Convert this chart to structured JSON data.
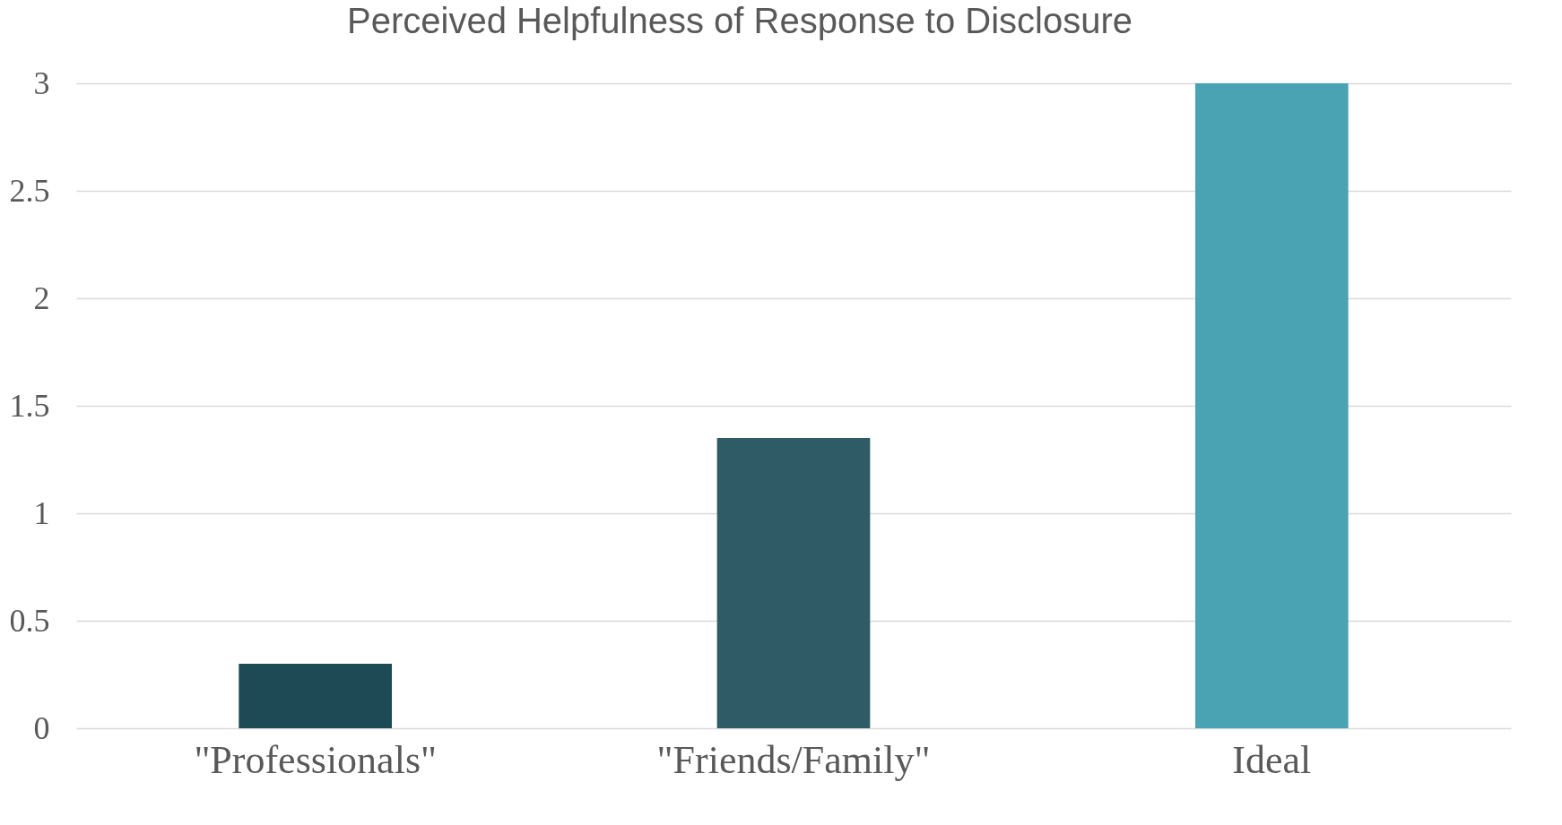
{
  "chart_data": {
    "type": "bar",
    "title": "Perceived  Helpfulness of Response to Disclosure",
    "categories": [
      "\"Professionals\"",
      "\"Friends/Family\"",
      "Ideal"
    ],
    "values": [
      0.3,
      1.35,
      3
    ],
    "colors": [
      "#1d4a54",
      "#2f5b66",
      "#4aa3b3"
    ],
    "ylim": [
      0,
      3
    ],
    "yticks": [
      0,
      0.5,
      1,
      1.5,
      2,
      2.5,
      3
    ],
    "grid": "y"
  }
}
